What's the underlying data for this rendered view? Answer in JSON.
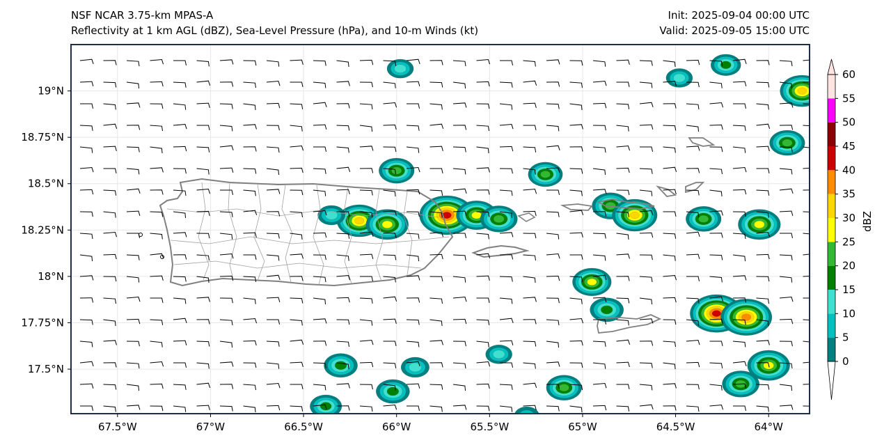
{
  "header": {
    "model": "NSF NCAR 3.75-km MPAS-A",
    "fields": "Reflectivity at 1 km AGL (dBZ), Sea-Level Pressure (hPa), and 10-m Winds (kt)",
    "init": "Init: 2025-09-04 00:00 UTC",
    "valid": "Valid: 2025-09-05 15:00 UTC"
  },
  "map": {
    "lon_ticks": [
      "67.5°W",
      "67°W",
      "66.5°W",
      "66°W",
      "65.5°W",
      "65°W",
      "64.5°W",
      "64°W"
    ],
    "lon_values": [
      -67.5,
      -67.0,
      -66.5,
      -66.0,
      -65.5,
      -65.0,
      -64.5,
      -64.0
    ],
    "lat_ticks": [
      "19°N",
      "18.75°N",
      "18.5°N",
      "18.25°N",
      "18°N",
      "17.75°N",
      "17.5°N"
    ],
    "lat_values": [
      19.0,
      18.75,
      18.5,
      18.25,
      18.0,
      17.75,
      17.5
    ],
    "lon_range": [
      -67.75,
      -63.78
    ],
    "lat_range": [
      17.26,
      19.25
    ],
    "ocean_color": "#ffffff",
    "coast_color": "#808080",
    "wind_barb_color": "#000000"
  },
  "colorbar": {
    "label": "dBZ",
    "tick_labels": [
      "0",
      "5",
      "10",
      "15",
      "20",
      "25",
      "30",
      "35",
      "40",
      "45",
      "50",
      "55",
      "60"
    ],
    "levels": [
      0,
      5,
      10,
      15,
      20,
      25,
      30,
      35,
      40,
      45,
      50,
      55,
      60
    ],
    "colors": [
      "#008080",
      "#00c0c0",
      "#40e0d0",
      "#008000",
      "#33b833",
      "#ffff00",
      "#ffd700",
      "#ff8c00",
      "#cc0000",
      "#8b0000",
      "#ff00ff",
      "#ffe4e1"
    ]
  },
  "cells": [
    {
      "lon": -66.0,
      "lat": 18.57,
      "peak": 22
    },
    {
      "lon": -66.2,
      "lat": 18.3,
      "peak": 33
    },
    {
      "lon": -66.05,
      "lat": 18.28,
      "peak": 30
    },
    {
      "lon": -65.73,
      "lat": 18.33,
      "peak": 44
    },
    {
      "lon": -65.57,
      "lat": 18.33,
      "peak": 28
    },
    {
      "lon": -65.45,
      "lat": 18.31,
      "peak": 24
    },
    {
      "lon": -65.2,
      "lat": 18.55,
      "peak": 21
    },
    {
      "lon": -64.85,
      "lat": 18.38,
      "peak": 24
    },
    {
      "lon": -64.72,
      "lat": 18.33,
      "peak": 33
    },
    {
      "lon": -64.35,
      "lat": 18.31,
      "peak": 22
    },
    {
      "lon": -64.05,
      "lat": 18.28,
      "peak": 30
    },
    {
      "lon": -64.95,
      "lat": 17.97,
      "peak": 26
    },
    {
      "lon": -64.87,
      "lat": 17.82,
      "peak": 20
    },
    {
      "lon": -64.28,
      "lat": 17.8,
      "peak": 42
    },
    {
      "lon": -64.12,
      "lat": 17.78,
      "peak": 40
    },
    {
      "lon": -64.15,
      "lat": 17.42,
      "peak": 24
    },
    {
      "lon": -64.0,
      "lat": 17.52,
      "peak": 30
    },
    {
      "lon": -63.82,
      "lat": 19.0,
      "peak": 32
    },
    {
      "lon": -63.9,
      "lat": 18.72,
      "peak": 22
    },
    {
      "lon": -66.3,
      "lat": 17.52,
      "peak": 20
    },
    {
      "lon": -66.02,
      "lat": 17.38,
      "peak": 20
    },
    {
      "lon": -65.1,
      "lat": 17.4,
      "peak": 22
    },
    {
      "lon": -66.38,
      "lat": 17.3,
      "peak": 18
    },
    {
      "lon": -65.9,
      "lat": 17.51,
      "peak": 14
    },
    {
      "lon": -65.45,
      "lat": 17.58,
      "peak": 12
    },
    {
      "lon": -64.48,
      "lat": 19.07,
      "peak": 12
    },
    {
      "lon": -64.23,
      "lat": 19.14,
      "peak": 16
    },
    {
      "lon": -65.98,
      "lat": 19.12,
      "peak": 12
    },
    {
      "lon": -66.35,
      "lat": 18.33,
      "peak": 13
    },
    {
      "lon": -65.3,
      "lat": 17.25,
      "peak": 10
    }
  ]
}
